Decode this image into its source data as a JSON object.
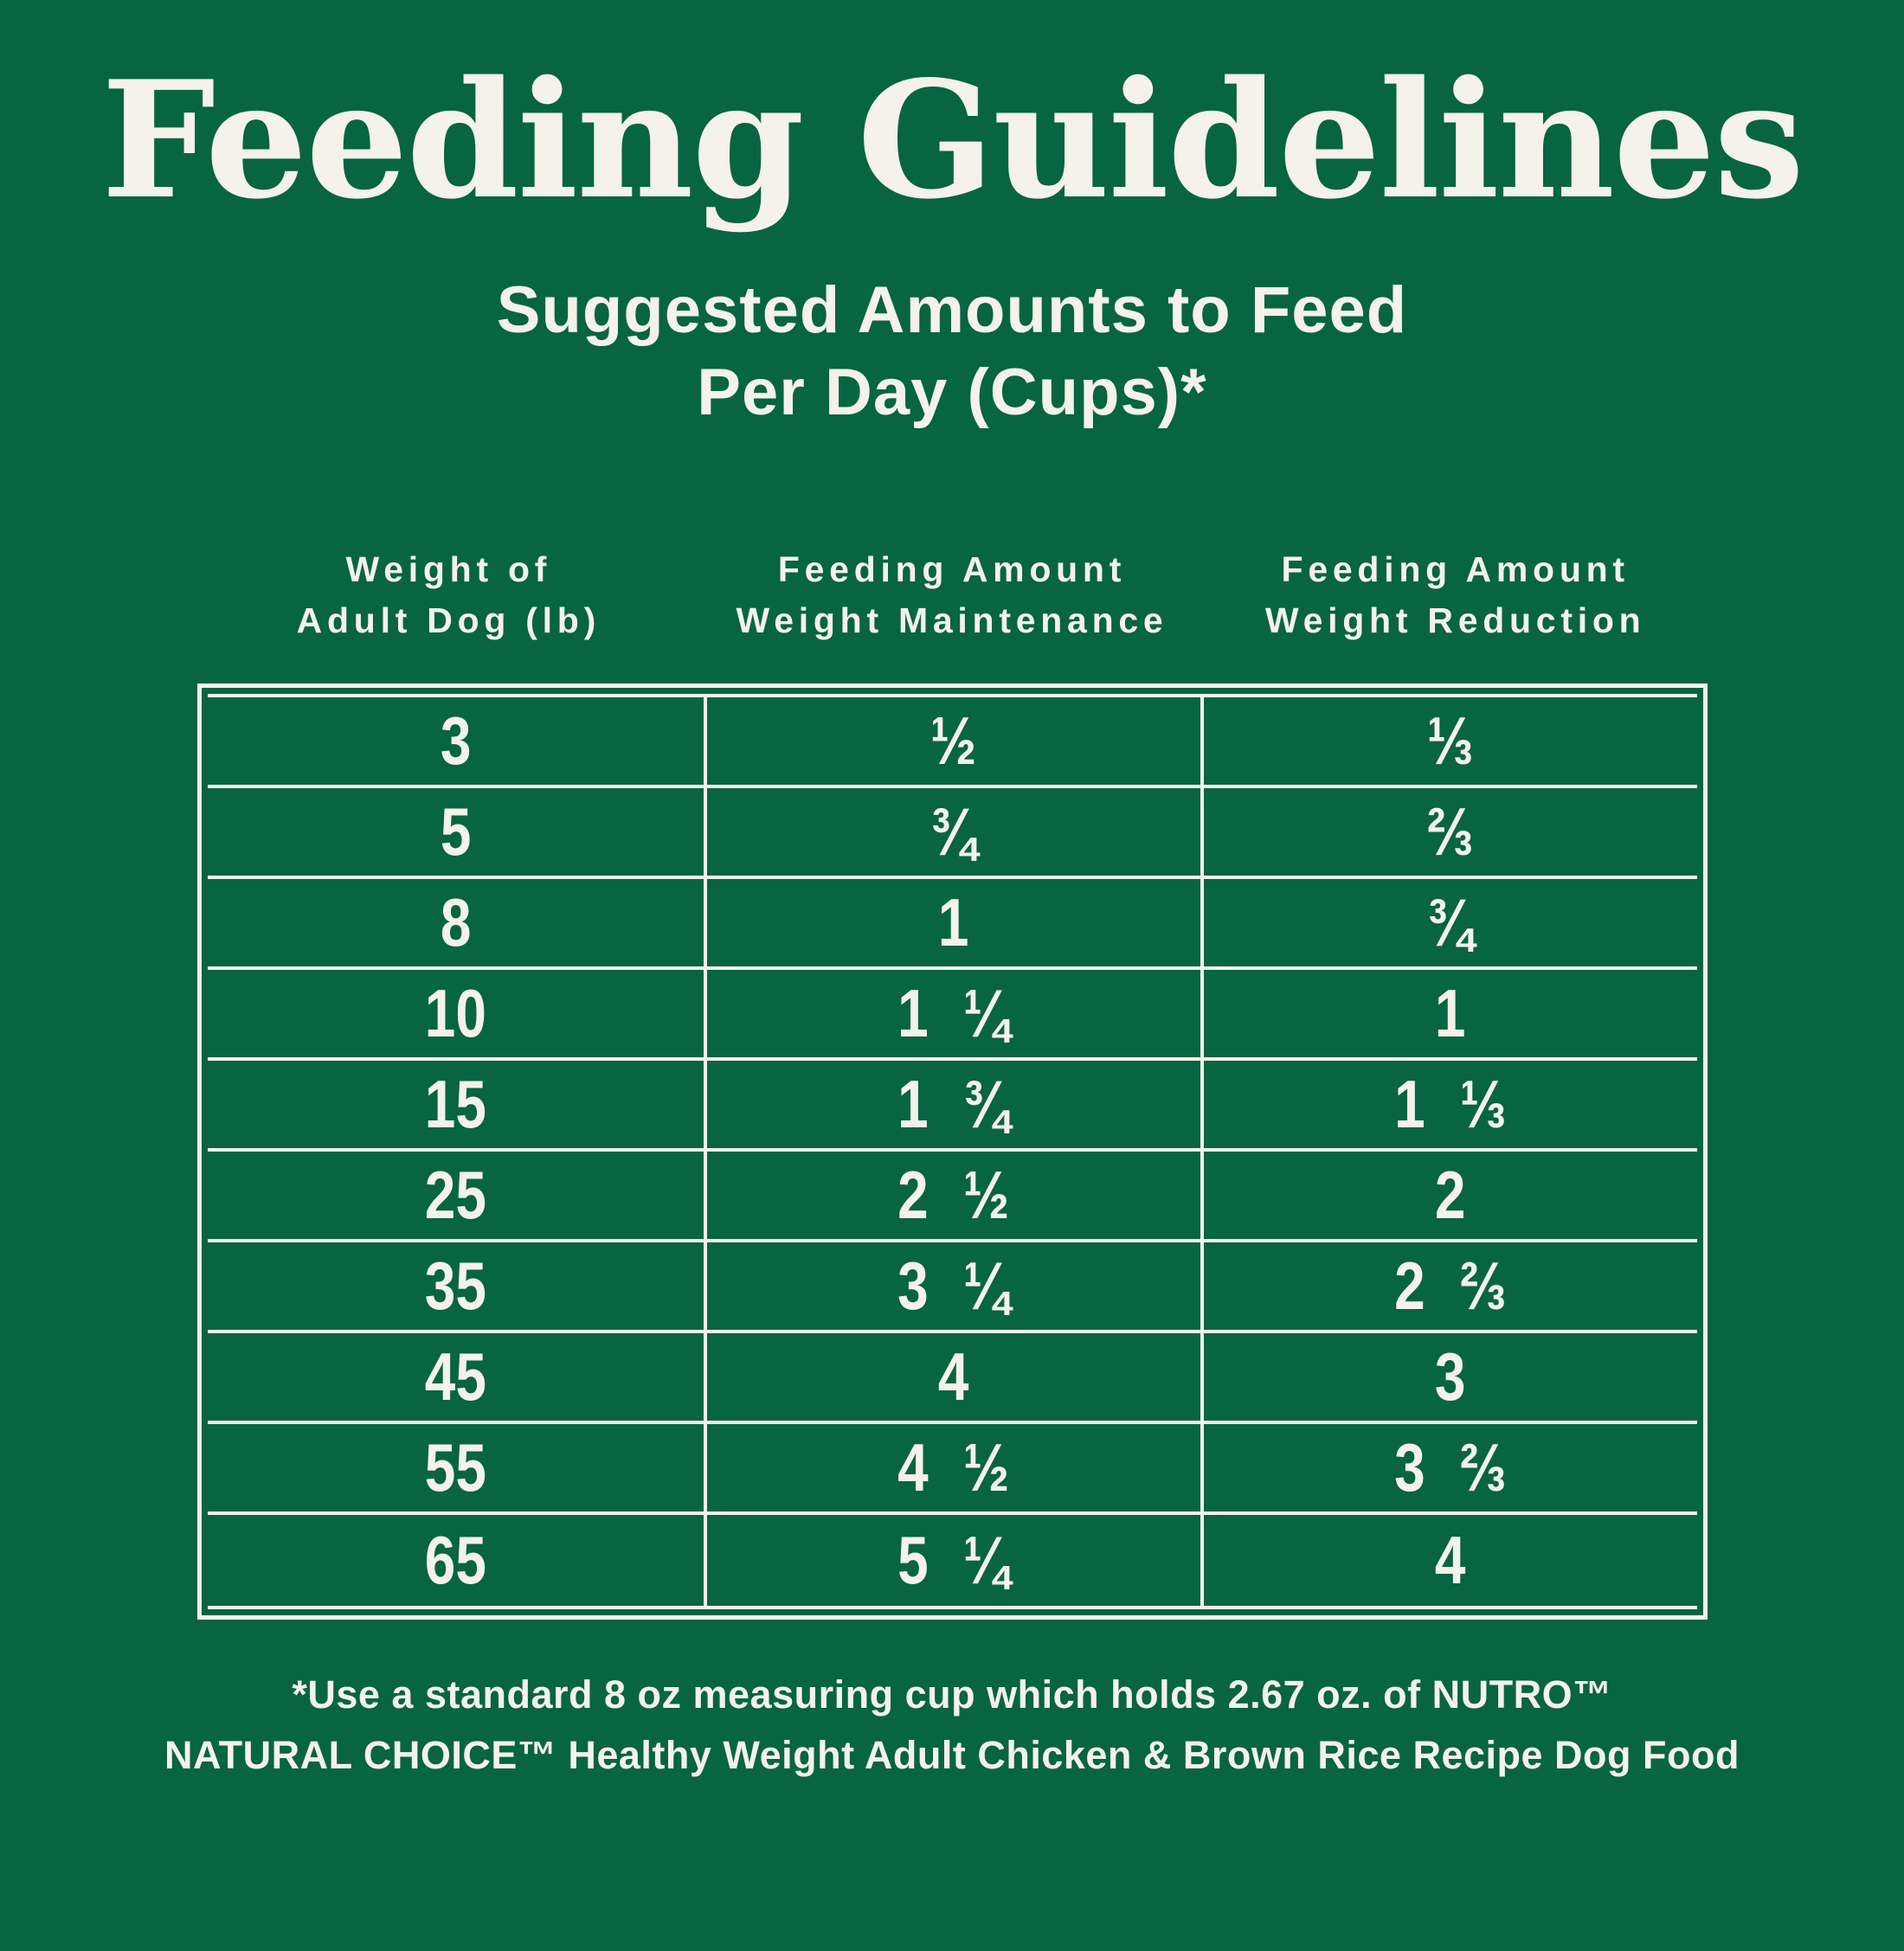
{
  "colors": {
    "background": "#076540",
    "text": "#F4F2E9"
  },
  "chart_data": {
    "type": "table",
    "title": "Feeding Guidelines",
    "subtitle": "Suggested Amounts to Feed\nPer Day (Cups)*",
    "columns": [
      {
        "label": "Weight of\nAdult Dog (lb)"
      },
      {
        "label": "Feeding Amount\nWeight Maintenance"
      },
      {
        "label": "Feeding Amount\nWeight Reduction"
      }
    ],
    "rows": [
      {
        "weight": "3",
        "maintenance": "½",
        "reduction": "⅓"
      },
      {
        "weight": "5",
        "maintenance": "¾",
        "reduction": "⅔"
      },
      {
        "weight": "8",
        "maintenance": "1",
        "reduction": "¾"
      },
      {
        "weight": "10",
        "maintenance": "1 ¼",
        "reduction": "1"
      },
      {
        "weight": "15",
        "maintenance": "1 ¾",
        "reduction": "1 ⅓"
      },
      {
        "weight": "25",
        "maintenance": "2 ½",
        "reduction": "2"
      },
      {
        "weight": "35",
        "maintenance": "3 ¼",
        "reduction": "2 ⅔"
      },
      {
        "weight": "45",
        "maintenance": "4",
        "reduction": "3"
      },
      {
        "weight": "55",
        "maintenance": "4 ½",
        "reduction": "3 ⅔"
      },
      {
        "weight": "65",
        "maintenance": "5 ¼",
        "reduction": "4"
      }
    ],
    "footnote": "*Use a standard 8 oz measuring cup which holds 2.67 oz. of NUTRO™\nNATURAL CHOICE™ Healthy Weight Adult Chicken & Brown Rice Recipe Dog Food"
  }
}
